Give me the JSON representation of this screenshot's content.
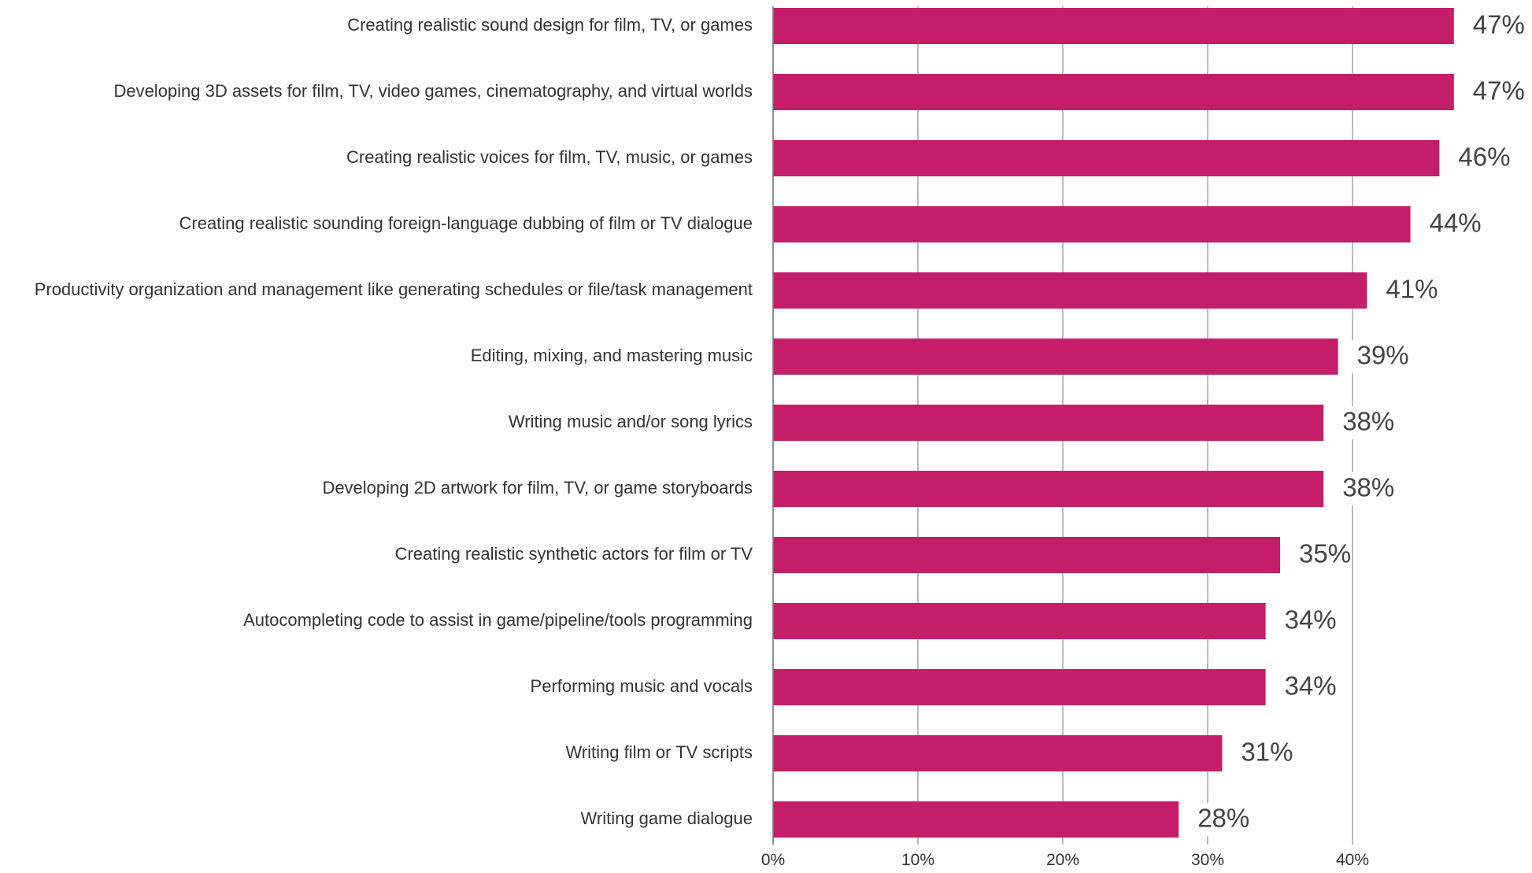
{
  "chart_data": {
    "type": "bar",
    "orientation": "horizontal",
    "categories": [
      "Creating realistic sound design for film, TV, or games",
      "Developing 3D assets for film, TV, video games, cinematography, and virtual worlds",
      "Creating realistic voices for film, TV, music, or games",
      "Creating realistic sounding foreign-language dubbing of film or TV dialogue",
      "Productivity organization and management like generating schedules or file/task management",
      "Editing, mixing, and mastering music",
      "Writing music and/or song lyrics",
      "Developing 2D artwork for film, TV, or game storyboards",
      "Creating realistic synthetic actors for film or TV",
      "Autocompleting code to assist in game/pipeline/tools programming",
      "Performing music and vocals",
      "Writing film or TV scripts",
      "Writing game dialogue"
    ],
    "values": [
      47,
      47,
      46,
      44,
      41,
      39,
      38,
      38,
      35,
      34,
      34,
      31,
      28
    ],
    "value_labels": [
      "47%",
      "47%",
      "46%",
      "44%",
      "41%",
      "39%",
      "38%",
      "38%",
      "35%",
      "34%",
      "34%",
      "31%",
      "28%"
    ],
    "xlim": [
      0,
      50
    ],
    "xticks": [
      0,
      10,
      20,
      30,
      40
    ],
    "xtick_labels": [
      "0%",
      "10%",
      "20%",
      "30%",
      "40%"
    ],
    "bar_color": "#c41e68",
    "grid": true,
    "title": "",
    "xlabel": "",
    "ylabel": ""
  }
}
